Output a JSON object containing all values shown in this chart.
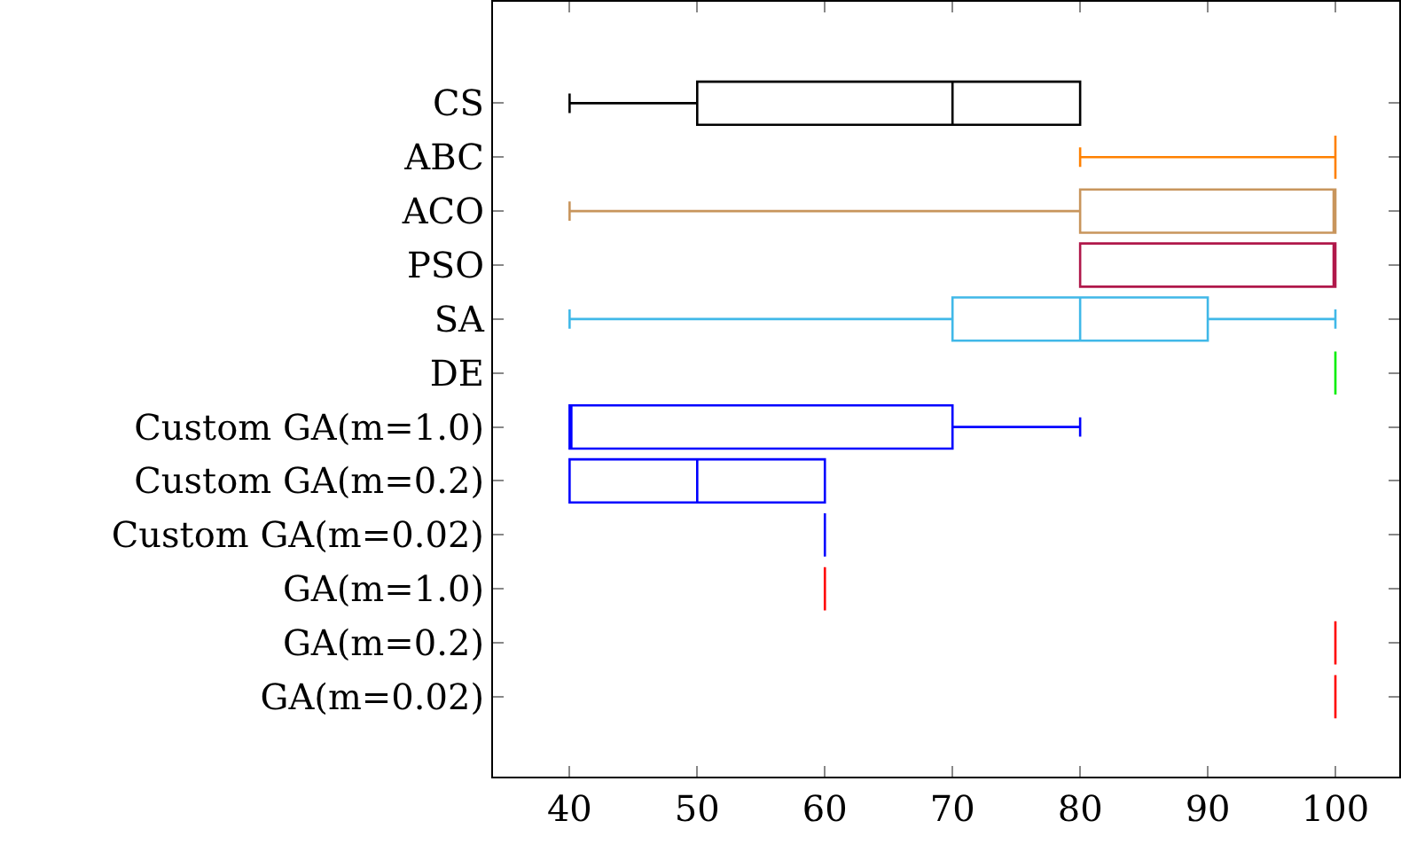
{
  "chart_data": {
    "type": "box",
    "orientation": "horizontal",
    "categories": [
      "CS",
      "ABC",
      "ACO",
      "PSO",
      "SA",
      "DE",
      "Custom GA(m=1.0)",
      "Custom GA(m=0.2)",
      "Custom GA(m=0.02)",
      "GA(m=1.0)",
      "GA(m=0.2)",
      "GA(m=0.02)"
    ],
    "colors": [
      "#000000",
      "#ff8000",
      "#c8955c",
      "#b0184a",
      "#40b8e8",
      "#00ee00",
      "#0000ff",
      "#0000ff",
      "#0000ff",
      "#ff0000",
      "#ff0000",
      "#ff0000"
    ],
    "boxes": [
      {
        "low": 40,
        "q1": 50,
        "median": 70,
        "q3": 80,
        "high": 80
      },
      {
        "low": 80,
        "q1": 100,
        "median": 100,
        "q3": 100,
        "high": 100
      },
      {
        "low": 40,
        "q1": 80,
        "median": 100,
        "q3": 100,
        "high": 100
      },
      {
        "low": 80,
        "q1": 80,
        "median": 100,
        "q3": 100,
        "high": 100
      },
      {
        "low": 40,
        "q1": 70,
        "median": 80,
        "q3": 90,
        "high": 100
      },
      {
        "low": 100,
        "q1": 100,
        "median": 100,
        "q3": 100,
        "high": 100
      },
      {
        "low": 40,
        "q1": 40,
        "median": 40,
        "q3": 70,
        "high": 80
      },
      {
        "low": 40,
        "q1": 40,
        "median": 50,
        "q3": 60,
        "high": 60
      },
      {
        "low": 60,
        "q1": 60,
        "median": 60,
        "q3": 60,
        "high": 60
      },
      {
        "low": 60,
        "q1": 60,
        "median": 60,
        "q3": 60,
        "high": 60
      },
      {
        "low": 100,
        "q1": 100,
        "median": 100,
        "q3": 100,
        "high": 100
      },
      {
        "low": 100,
        "q1": 100,
        "median": 100,
        "q3": 100,
        "high": 100
      }
    ],
    "xlim": [
      34,
      105
    ],
    "xticks": [
      40,
      50,
      60,
      70,
      80,
      90,
      100
    ],
    "grid": false,
    "legend": false
  }
}
